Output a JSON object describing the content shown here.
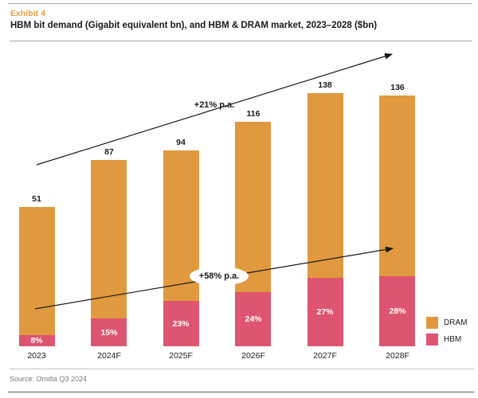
{
  "header": {
    "exhibit_label": "Exhibit 4",
    "title": "HBM bit demand (Gigabit equivalent bn), and HBM & DRAM market, 2023–2028 ($bn)"
  },
  "footer": {
    "source": "Source: Omdia Q3 2024"
  },
  "legend": [
    {
      "label": "DRAM",
      "color": "#e0993e"
    },
    {
      "label": "HBM",
      "color": "#dd5570"
    }
  ],
  "annotations": [
    {
      "id": "total-market-growth",
      "text": "+21% p.a."
    },
    {
      "id": "hbm-growth",
      "text": "+58% p.a."
    }
  ],
  "chart_data": {
    "type": "bar",
    "stacked": true,
    "title": "HBM bit demand (Gigabit equivalent bn), and HBM & DRAM market, 2023–2028 ($bn)",
    "categories": [
      "2023",
      "2024F",
      "2025F",
      "2026F",
      "2027F",
      "2028F"
    ],
    "totals": [
      51,
      87,
      94,
      116,
      138,
      136
    ],
    "hbm_share_pct": [
      8,
      15,
      23,
      24,
      27,
      28
    ],
    "hbm_share_labels": [
      "8%",
      "15%",
      "23%",
      "24%",
      "27%",
      "28%"
    ],
    "series": [
      {
        "name": "DRAM",
        "color": "#e0993e"
      },
      {
        "name": "HBM",
        "color": "#dd5570"
      }
    ],
    "annotations": [
      {
        "text": "+21% p.a.",
        "style": "arrow over bar tops"
      },
      {
        "text": "+58% p.a.",
        "style": "arrow over HBM segments, label in white ellipse"
      }
    ],
    "xlabel": "",
    "ylabel": "",
    "grid": false,
    "axis_lines": false,
    "legend_position": "bottom-right",
    "value_labels": "above bars",
    "source": "Source: Omdia Q3 2024"
  }
}
